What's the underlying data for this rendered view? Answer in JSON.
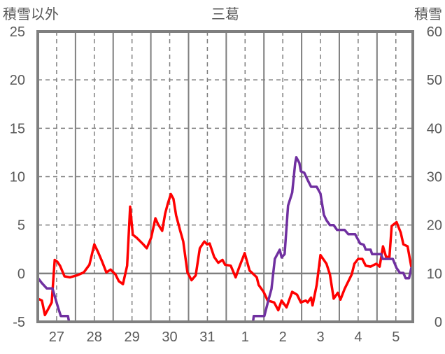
{
  "chart_data": {
    "type": "line",
    "title": "三葛",
    "ylabel_left": "積雪以外",
    "ylabel_right": "積雪",
    "x_unit": "days from left edge",
    "xlim": [
      0,
      9.95
    ],
    "ylim_left": [
      -5,
      25
    ],
    "ylim_right": [
      0,
      60
    ],
    "yticks_left": [
      "-5",
      "0",
      "5",
      "10",
      "15",
      "20",
      "25"
    ],
    "yticks_right": [
      "0",
      "10",
      "20",
      "30",
      "40",
      "50",
      "60"
    ],
    "xtick_labels": [
      "27",
      "28",
      "29",
      "30",
      "31",
      "1",
      "2",
      "3",
      "4",
      "5"
    ],
    "xtick_positions": [
      0.5,
      1.5,
      2.5,
      3.5,
      4.5,
      5.5,
      6.5,
      7.5,
      8.5,
      9.5
    ],
    "grid": true,
    "series": [
      {
        "name": "積雪以外",
        "axis": "left",
        "color": "#ff0000",
        "x": [
          0,
          0.11,
          0.19,
          0.3,
          0.37,
          0.45,
          0.52,
          0.59,
          0.71,
          0.85,
          1.04,
          1.22,
          1.37,
          1.5,
          1.6,
          1.71,
          1.82,
          1.93,
          2.06,
          2.15,
          2.26,
          2.37,
          2.45,
          2.52,
          2.62,
          2.8,
          2.89,
          3.01,
          3.12,
          3.19,
          3.3,
          3.38,
          3.45,
          3.53,
          3.6,
          3.67,
          3.78,
          3.86,
          3.97,
          4.08,
          4.19,
          4.3,
          4.42,
          4.49,
          4.56,
          4.68,
          4.79,
          4.9,
          4.97,
          5.12,
          5.25,
          5.34,
          5.49,
          5.62,
          5.81,
          5.86,
          5.99,
          6.1,
          6.27,
          6.38,
          6.47,
          6.6,
          6.75,
          6.88,
          6.98,
          7.11,
          7.16,
          7.25,
          7.29,
          7.4,
          7.5,
          7.66,
          7.75,
          7.85,
          7.96,
          8.03,
          8.14,
          8.33,
          8.4,
          8.5,
          8.61,
          8.7,
          8.83,
          8.98,
          9.07,
          9.16,
          9.24,
          9.33,
          9.39,
          9.52,
          9.63,
          9.7,
          9.81,
          9.91,
          9.94
        ],
        "y": [
          -2.6,
          -2.8,
          -4.3,
          -3.5,
          -3,
          1.4,
          1.2,
          0.8,
          -0.3,
          -0.4,
          -0.2,
          0.1,
          0.9,
          3,
          2.2,
          1.2,
          0.1,
          0.4,
          -0.1,
          -0.8,
          -1.1,
          0.8,
          6.9,
          4,
          3.7,
          3,
          2.6,
          3.7,
          5.7,
          5.1,
          4.4,
          6.2,
          7.2,
          8.2,
          7.7,
          6,
          4.4,
          3.3,
          0.1,
          -0.7,
          -0.2,
          2.6,
          3.3,
          3,
          3.1,
          1.7,
          1.1,
          1.4,
          0.9,
          0.8,
          -0.4,
          0.6,
          2.1,
          0.3,
          -0.4,
          -1.2,
          -1.9,
          -2.8,
          -3,
          -3.8,
          -2.8,
          -3.5,
          -1.9,
          -2.2,
          -3,
          -2.8,
          -3,
          -2.5,
          -3.3,
          -1.2,
          1.9,
          1,
          -0.1,
          -2.6,
          -2,
          -2.7,
          -1.6,
          -0.1,
          1,
          1.5,
          1.5,
          0.8,
          0.7,
          1,
          0.7,
          2.8,
          1.7,
          1.7,
          4.9,
          5.3,
          4.2,
          3,
          2.8,
          0.7,
          1
        ]
      },
      {
        "name": "積雪",
        "axis": "right",
        "color": "#7030a0",
        "x": [
          0,
          0.11,
          0.24,
          0.39,
          0.54,
          0.61,
          0.8,
          0.83,
          5.71,
          5.73,
          6.01,
          6.1,
          6.2,
          6.29,
          6.42,
          6.47,
          6.55,
          6.64,
          6.75,
          6.83,
          6.86,
          6.94,
          6.98,
          7.07,
          7.16,
          7.25,
          7.4,
          7.5,
          7.59,
          7.66,
          7.75,
          7.85,
          7.94,
          8.14,
          8.24,
          8.42,
          8.55,
          8.65,
          8.7,
          8.83,
          8.87,
          9.11,
          9.15,
          9.42,
          9.52,
          9.61,
          9.7,
          9.76,
          9.85,
          9.91
        ],
        "y": [
          9.1,
          8,
          6.9,
          6.9,
          2.9,
          1.2,
          1.2,
          0,
          0,
          1.2,
          1.2,
          3.9,
          6.8,
          13,
          14.9,
          13.3,
          14,
          24,
          26.7,
          32.8,
          34,
          32.8,
          31.1,
          30.8,
          29.3,
          27.9,
          27.9,
          26.5,
          22.1,
          21,
          20,
          20,
          19,
          19,
          18.1,
          18.1,
          16.2,
          15.9,
          14.9,
          14.9,
          14,
          14,
          13,
          13,
          11.1,
          10.1,
          10.1,
          9,
          9,
          11.1
        ]
      }
    ]
  }
}
